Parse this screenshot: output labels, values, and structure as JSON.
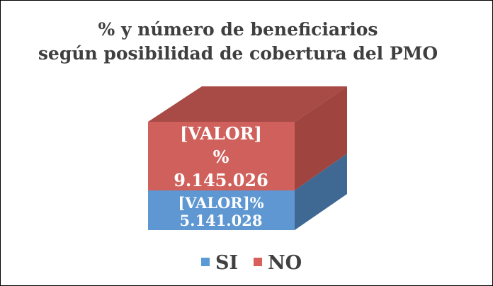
{
  "chart_data": {
    "type": "bar",
    "stacked": true,
    "percent_stacked": true,
    "three_d": true,
    "title": "% y número de beneficiarios según posibilidad de cobertura del PMO",
    "title_lines": [
      "% y número de beneficiarios",
      "según posibilidad de cobertura del PMO"
    ],
    "series": [
      {
        "name": "SI",
        "value": 5141028,
        "label_line1": "[VALOR]%",
        "label_line2": "5.141.028",
        "color": "#5B9BD5"
      },
      {
        "name": "NO",
        "value": 9145026,
        "label_line1": "[VALOR]",
        "label_line2": "%",
        "label_line3": "9.145.026",
        "color": "#D9605A"
      }
    ],
    "legend": {
      "position": "bottom",
      "entries": [
        "SI",
        "NO"
      ]
    }
  }
}
